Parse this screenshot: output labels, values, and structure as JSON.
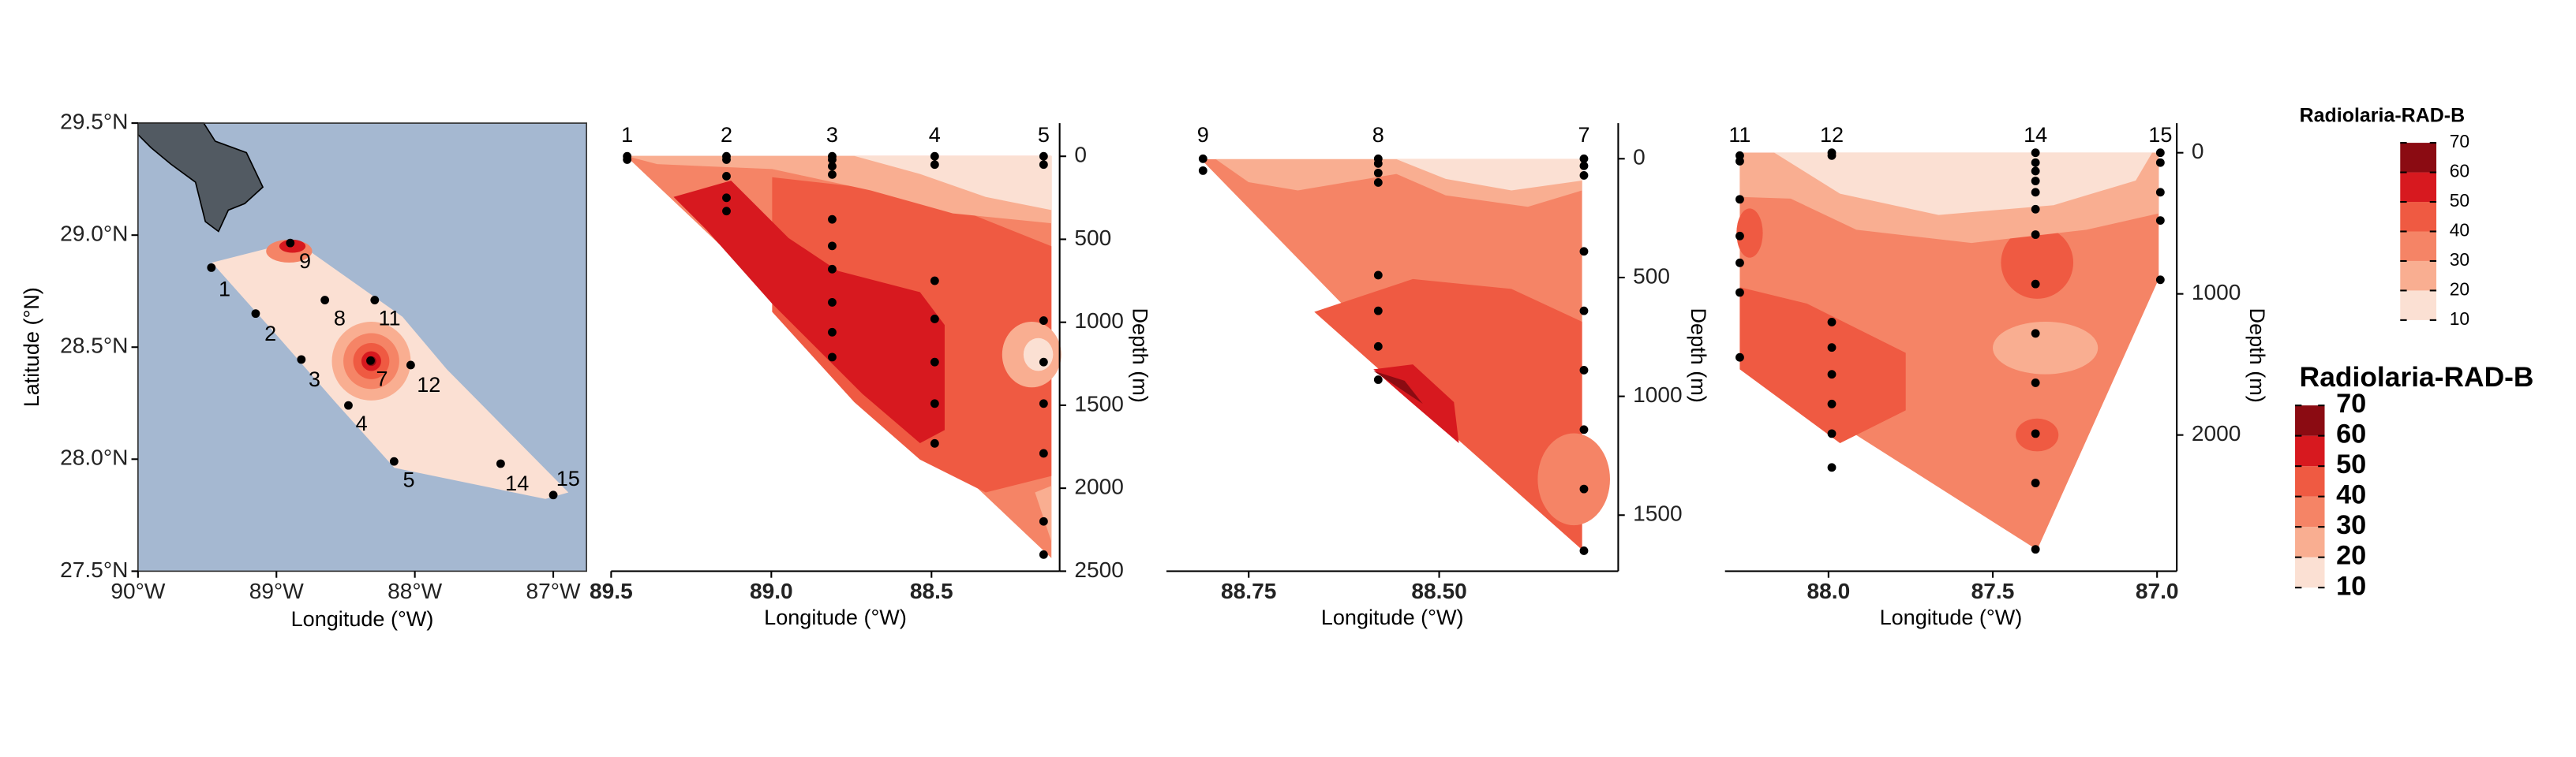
{
  "chart_data": [
    {
      "type": "map",
      "x_label": "Longitude (°W)",
      "y_label": "Latitude (°N)",
      "xlim": [
        -90,
        -86.76
      ],
      "ylim": [
        27.5,
        29.5
      ],
      "xticks": [
        {
          "value": -90,
          "label": "90°W"
        },
        {
          "value": -89,
          "label": "89°W"
        },
        {
          "value": -88,
          "label": "88°W"
        },
        {
          "value": -87,
          "label": "87°W"
        }
      ],
      "yticks": [
        {
          "value": 27.5,
          "label": "27.5°N"
        },
        {
          "value": 28,
          "label": "28.0°N"
        },
        {
          "value": 28.5,
          "label": "28.5°N"
        },
        {
          "value": 29,
          "label": "29.0°N"
        },
        {
          "value": 29.5,
          "label": "29.5°N"
        }
      ],
      "color": "#000000",
      "stations": {
        "labels": [
          "1",
          "2",
          "3",
          "4",
          "5",
          "7",
          "8",
          "9",
          "11",
          "12",
          "14",
          "15"
        ],
        "x": [
          -89.47,
          -89.15,
          -88.82,
          -88.48,
          -88.15,
          -88.32,
          -88.65,
          -88.9,
          -88.29,
          -88.03,
          -87.38,
          -87.0
        ],
        "y": [
          28.855,
          28.65,
          28.445,
          28.24,
          27.99,
          28.44,
          28.71,
          28.965,
          28.71,
          28.42,
          27.98,
          27.84
        ]
      }
    },
    {
      "type": "section",
      "x_label": "Longitude (°W)",
      "y_label": "Depth (m)",
      "xlim": [
        89.5,
        88.1
      ],
      "ylim": [
        -200,
        2500
      ],
      "xticks": [
        89.5,
        {
          "value": 89,
          "label": "89.0"
        },
        88.5
      ],
      "yticks": [
        0,
        500,
        1000,
        1500,
        2000,
        2500
      ],
      "color": "#000000",
      "stations": [
        {
          "name": "1",
          "x": 89.45,
          "depths": [
            0,
            20
          ]
        },
        {
          "name": "2",
          "x": 89.14,
          "depths": [
            0,
            20,
            120,
            250,
            330
          ]
        },
        {
          "name": "3",
          "x": 88.81,
          "depths": [
            0,
            20,
            60,
            110,
            380,
            540,
            680,
            880,
            1060,
            1210
          ]
        },
        {
          "name": "4",
          "x": 88.49,
          "depths": [
            0,
            50,
            750,
            980,
            1240,
            1490,
            1730
          ]
        },
        {
          "name": "5",
          "x": 88.15,
          "depths": [
            0,
            50,
            990,
            1240,
            1490,
            1790,
            2200,
            2400
          ]
        }
      ]
    },
    {
      "type": "section",
      "x_label": "Longitude (°W)",
      "y_label": "Depth (m)",
      "xlim": [
        88.858,
        88.265
      ],
      "ylim": [
        -150,
        1736
      ],
      "xticks": [
        88.75,
        {
          "value": 88.5,
          "label": "88.50"
        }
      ],
      "yticks": [
        500,
        1000,
        1500,
        0
      ],
      "color": "#000000",
      "stations": [
        {
          "name": "9",
          "x": 88.81,
          "depths": [
            0,
            50
          ]
        },
        {
          "name": "8",
          "x": 88.58,
          "depths": [
            0,
            20,
            60,
            100,
            490,
            640,
            790,
            930
          ]
        },
        {
          "name": "7",
          "x": 88.31,
          "depths": [
            0,
            30,
            70,
            390,
            640,
            890,
            1140,
            1390,
            1650
          ]
        }
      ]
    },
    {
      "type": "section",
      "x_label": "Longitude (°W)",
      "y_label": "Depth (m)",
      "xlim": [
        88.315,
        86.94
      ],
      "ylim": [
        -210,
        2965
      ],
      "xticks": [
        {
          "value": 88,
          "label": "88.0"
        },
        87.5,
        {
          "value": 87,
          "label": "87.0"
        }
      ],
      "yticks": [
        0,
        1000,
        2000
      ],
      "color": "#000000",
      "stations": [
        {
          "name": "11",
          "x": 88.27,
          "depths": [
            20,
            60,
            330,
            590,
            780,
            990,
            1450
          ]
        },
        {
          "name": "12",
          "x": 87.99,
          "depths": [
            0,
            20,
            1200,
            1380,
            1570,
            1780,
            1990,
            2230
          ]
        },
        {
          "name": "14",
          "x": 87.37,
          "depths": [
            0,
            70,
            130,
            200,
            280,
            400,
            580,
            930,
            1280,
            1630,
            1990,
            2340,
            2810
          ]
        },
        {
          "name": "15",
          "x": 86.99,
          "depths": [
            0,
            70,
            280,
            480,
            900
          ]
        }
      ]
    }
  ],
  "legends": [
    {
      "title": "Radiolaria-RAD-B",
      "breaks": [
        10,
        20,
        30,
        40,
        50,
        60,
        70
      ],
      "colors": [
        "#fbe0d3",
        "#f9ae91",
        "#f58466",
        "#ef5a42",
        "#d7191f",
        "#8b0b12"
      ]
    },
    {
      "title": "Radiolaria-RAD-B",
      "breaks": [
        10,
        20,
        30,
        40,
        50,
        60,
        70
      ],
      "colors": [
        "#fbe0d3",
        "#f9ae91",
        "#f58466",
        "#ef5a42",
        "#d7191f",
        "#8b0b12"
      ]
    }
  ]
}
